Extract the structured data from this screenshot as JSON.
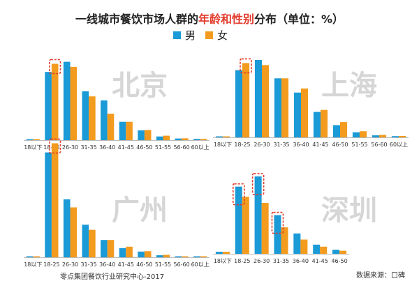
{
  "title": {
    "before": "一线城市餐饮市场人群的",
    "highlight": "年龄和性别",
    "after": "分布（单位：%）"
  },
  "legend": [
    {
      "name": "男",
      "color": "#1a9ad6"
    },
    {
      "name": "女",
      "color": "#f39b1e"
    }
  ],
  "footer": {
    "left": "零点集团餐饮行业研究中心-2017",
    "right": "数据来源：口碑"
  },
  "chart_data": [
    {
      "type": "bar",
      "city": "北京",
      "categories": [
        "18以下",
        "18-25",
        "26-30",
        "31-35",
        "36-40",
        "41-45",
        "46-50",
        "51-55",
        "56-60",
        "60以上"
      ],
      "series": [
        {
          "name": "男",
          "values": [
            0.5,
            33.5,
            38.5,
            24,
            19.5,
            9,
            4.8,
            1.8,
            0.8,
            0.6
          ]
        },
        {
          "name": "女",
          "values": [
            0.5,
            37.5,
            36,
            21.5,
            13,
            9,
            5,
            2.2,
            0.9,
            0.6
          ]
        }
      ],
      "highlight": [
        1
      ]
    },
    {
      "type": "bar",
      "city": "上海",
      "categories": [
        "18以下",
        "18-25",
        "26-30",
        "31-35",
        "36-40",
        "41-45",
        "46-50",
        "51-55",
        "56-60",
        "60以上"
      ],
      "series": [
        {
          "name": "男",
          "values": [
            0.5,
            33,
            38,
            29,
            22,
            12.5,
            6,
            2.5,
            1,
            0.6
          ]
        },
        {
          "name": "女",
          "values": [
            0.5,
            36.5,
            35.5,
            29,
            24,
            13.5,
            7.5,
            3,
            1.2,
            0.7
          ]
        }
      ],
      "highlight": [
        1
      ]
    },
    {
      "type": "bar",
      "city": "广州",
      "categories": [
        "18以下",
        "18-25",
        "26-30",
        "31-35",
        "36-40",
        "41-45",
        "46-50",
        "51-55",
        "56-60",
        "60以上"
      ],
      "series": [
        {
          "name": "男",
          "values": [
            0.5,
            51.5,
            28.5,
            16,
            8.5,
            4.5,
            2.8,
            1,
            0.5,
            0.5
          ]
        },
        {
          "name": "女",
          "values": [
            0.5,
            56,
            24.5,
            13.5,
            8.5,
            5.2,
            3,
            1.2,
            0.5,
            0.5
          ]
        }
      ],
      "highlight": [
        1
      ]
    },
    {
      "type": "bar",
      "city": "深圳",
      "categories": [
        "18以下",
        "18-25",
        "26-30",
        "31-35",
        "36-40",
        "41-45",
        "46-50"
      ],
      "series": [
        {
          "name": "男",
          "values": [
            1,
            33,
            38,
            19,
            10,
            4.5,
            2
          ]
        },
        {
          "name": "女",
          "values": [
            1,
            28,
            25,
            13,
            7,
            3.5,
            1.5
          ]
        }
      ],
      "highlight": [
        1,
        2,
        3
      ]
    }
  ]
}
